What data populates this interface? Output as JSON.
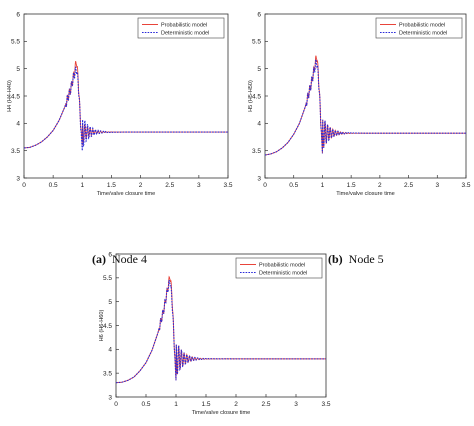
{
  "captions": [
    {
      "letter": "(a)",
      "text": "Node 4"
    },
    {
      "letter": "(b)",
      "text": "Node 5"
    }
  ],
  "chart_data": [
    {
      "type": "line",
      "xlabel": "Time/valve closure time",
      "ylabel": "H4 (H4-H40)",
      "xlim": [
        0,
        3.5
      ],
      "ylim": [
        3,
        6
      ],
      "xticks": [
        "0",
        "0.5",
        "1",
        "1.5",
        "2",
        "2.5",
        "3",
        "3.5"
      ],
      "yticks": [
        "3",
        "3.5",
        "4",
        "4.5",
        "5",
        "5.5",
        "6"
      ],
      "legend": "top-right",
      "series": [
        {
          "name": "Probabilistic model",
          "color": "#e8443a",
          "style": "solid",
          "peak": 5.15,
          "x": [
            0,
            0.1,
            0.2,
            0.3,
            0.4,
            0.5,
            0.6,
            0.7,
            0.8,
            0.85,
            0.9,
            0.93,
            0.96,
            1.0,
            1.05,
            1.2,
            1.5,
            2.0,
            2.5,
            3.0,
            3.5
          ],
          "y": [
            3.55,
            3.56,
            3.6,
            3.66,
            3.75,
            3.87,
            4.05,
            4.3,
            4.62,
            4.85,
            5.15,
            4.8,
            4.2,
            3.6,
            4.0,
            3.86,
            3.84,
            3.84,
            3.84,
            3.84,
            3.84
          ]
        },
        {
          "name": "Deterministic model",
          "color": "#2a2ad8",
          "style": "dotted",
          "peak": 5.0,
          "x": [
            0,
            0.1,
            0.2,
            0.3,
            0.4,
            0.5,
            0.6,
            0.7,
            0.8,
            0.85,
            0.9,
            0.93,
            0.96,
            1.0,
            1.05,
            1.2,
            1.5,
            2.0,
            2.5,
            3.0,
            3.5
          ],
          "y": [
            3.55,
            3.56,
            3.6,
            3.66,
            3.75,
            3.87,
            4.05,
            4.3,
            4.62,
            4.85,
            5.0,
            4.75,
            4.2,
            3.5,
            4.1,
            3.86,
            3.84,
            3.84,
            3.84,
            3.84,
            3.84
          ]
        }
      ]
    },
    {
      "type": "line",
      "xlabel": "Time/valve closure time",
      "ylabel": "H5 (H5-H50)",
      "xlim": [
        0,
        3.5
      ],
      "ylim": [
        3,
        6
      ],
      "xticks": [
        "0",
        "0.5",
        "1",
        "1.5",
        "2",
        "2.5",
        "3",
        "3.5"
      ],
      "yticks": [
        "3",
        "3.5",
        "4",
        "4.5",
        "5",
        "5.5",
        "6"
      ],
      "legend": "top-right",
      "series": [
        {
          "name": "Probabilistic model",
          "color": "#e8443a",
          "style": "solid",
          "peak": 5.25,
          "x": [
            0,
            0.1,
            0.2,
            0.3,
            0.4,
            0.5,
            0.6,
            0.7,
            0.8,
            0.85,
            0.9,
            0.93,
            0.96,
            1.0,
            1.05,
            1.2,
            1.5,
            2.0,
            2.5,
            3.0,
            3.5
          ],
          "y": [
            3.42,
            3.44,
            3.48,
            3.55,
            3.65,
            3.8,
            4.0,
            4.3,
            4.7,
            4.95,
            5.25,
            4.9,
            4.3,
            3.45,
            4.2,
            3.83,
            3.82,
            3.82,
            3.82,
            3.82,
            3.82
          ]
        },
        {
          "name": "Deterministic model",
          "color": "#2a2ad8",
          "style": "dotted",
          "peak": 5.15,
          "x": [
            0,
            0.1,
            0.2,
            0.3,
            0.4,
            0.5,
            0.6,
            0.7,
            0.8,
            0.85,
            0.9,
            0.93,
            0.96,
            1.0,
            1.05,
            1.2,
            1.5,
            2.0,
            2.5,
            3.0,
            3.5
          ],
          "y": [
            3.42,
            3.44,
            3.48,
            3.55,
            3.65,
            3.8,
            4.0,
            4.3,
            4.7,
            4.95,
            5.15,
            4.85,
            4.3,
            3.45,
            4.2,
            3.83,
            3.82,
            3.82,
            3.82,
            3.82,
            3.82
          ]
        }
      ]
    },
    {
      "type": "line",
      "xlabel": "Time/valve closure time",
      "ylabel": "H6 (H6-H60)",
      "xlim": [
        0,
        3.5
      ],
      "ylim": [
        3,
        6
      ],
      "xticks": [
        "0",
        "0.5",
        "1",
        "1.5",
        "2",
        "2.5",
        "3",
        "3.5"
      ],
      "yticks": [
        "3",
        "3.5",
        "4",
        "4.5",
        "5",
        "5.5",
        "6"
      ],
      "legend": "top-right",
      "series": [
        {
          "name": "Probabilistic model",
          "color": "#e8443a",
          "style": "solid",
          "peak": 5.55,
          "x": [
            0,
            0.1,
            0.2,
            0.3,
            0.4,
            0.5,
            0.6,
            0.7,
            0.8,
            0.85,
            0.9,
            0.93,
            0.96,
            1.0,
            1.05,
            1.2,
            1.5,
            2.0,
            2.5,
            3.0,
            3.5
          ],
          "y": [
            3.3,
            3.31,
            3.35,
            3.42,
            3.55,
            3.72,
            3.98,
            4.35,
            4.85,
            5.2,
            5.55,
            5.2,
            4.4,
            3.35,
            4.3,
            3.81,
            3.8,
            3.8,
            3.8,
            3.8,
            3.8
          ]
        },
        {
          "name": "Deterministic model",
          "color": "#2a2ad8",
          "style": "dotted",
          "peak": 5.45,
          "x": [
            0,
            0.1,
            0.2,
            0.3,
            0.4,
            0.5,
            0.6,
            0.7,
            0.8,
            0.85,
            0.9,
            0.93,
            0.96,
            1.0,
            1.05,
            1.2,
            1.5,
            2.0,
            2.5,
            3.0,
            3.5
          ],
          "y": [
            3.3,
            3.31,
            3.35,
            3.42,
            3.55,
            3.72,
            3.98,
            4.35,
            4.85,
            5.2,
            5.45,
            5.1,
            4.4,
            3.35,
            4.3,
            3.81,
            3.8,
            3.8,
            3.8,
            3.8,
            3.8
          ]
        }
      ]
    }
  ]
}
